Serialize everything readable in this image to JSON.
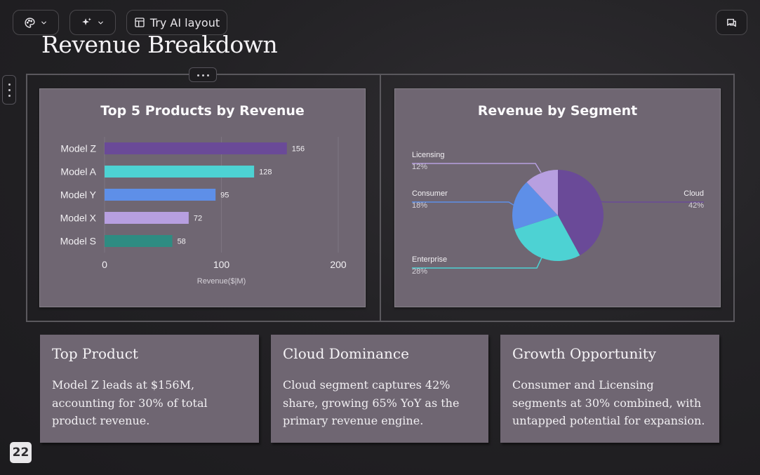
{
  "toolbar": {
    "theme_icon": "palette-icon",
    "ai_icon": "sparkles-icon",
    "layout_icon": "layout-icon",
    "layout_label": "Try AI layout",
    "comments_icon": "comments-icon"
  },
  "slide": {
    "title": "Revenue Breakdown",
    "page_number": "22"
  },
  "chart_data": [
    {
      "type": "bar",
      "orientation": "horizontal",
      "title": "Top 5 Products by Revenue",
      "categories": [
        "Model Z",
        "Model A",
        "Model Y",
        "Model X",
        "Model S"
      ],
      "values": [
        156,
        128,
        95,
        72,
        58
      ],
      "colors": [
        "#6a4a98",
        "#4dd2d3",
        "#5e8fe8",
        "#b79fe0",
        "#2e8c82"
      ],
      "xlabel": "Revenue($|M)",
      "ylabel": "",
      "xlim": [
        0,
        200
      ],
      "xticks": [
        0,
        100,
        200
      ],
      "grid": true
    },
    {
      "type": "pie",
      "title": "Revenue by Segment",
      "labels": [
        "Cloud",
        "Enterprise",
        "Consumer",
        "Licensing"
      ],
      "values": [
        42,
        28,
        18,
        12
      ],
      "value_labels": [
        "42%",
        "28%",
        "18%",
        "12%"
      ],
      "colors": [
        "#6a4a98",
        "#4dd2d3",
        "#5e8fe8",
        "#b79fe0"
      ]
    }
  ],
  "cards": [
    {
      "heading": "Top Product",
      "body": "Model Z leads at $156M, accounting for 30% of total product revenue."
    },
    {
      "heading": "Cloud Dominance",
      "body": "Cloud segment captures 42% share, growing 65% YoY as the primary revenue engine."
    },
    {
      "heading": "Growth Opportunity",
      "body": "Consumer and Licensing segments at 30% combined, with untapped potential for expansion."
    }
  ]
}
